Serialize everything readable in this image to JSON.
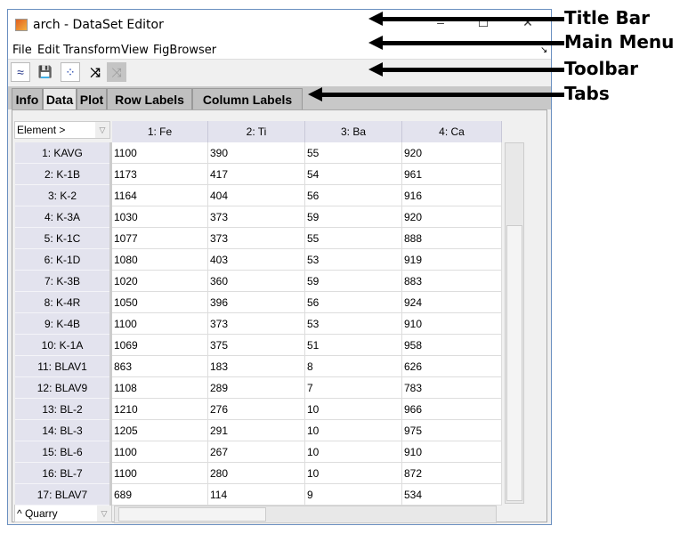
{
  "window": {
    "title": "arch - DataSet Editor",
    "minimize": "–",
    "maximize": "☐",
    "close": "✕"
  },
  "menu": [
    "File",
    "Edit",
    "Transform",
    "View",
    "FigBrowser"
  ],
  "toolbar": [
    {
      "icon": "plot-icon",
      "glyph": "≈"
    },
    {
      "icon": "save-icon",
      "glyph": "💾"
    },
    {
      "icon": "scatter-icon",
      "glyph": "⁘"
    },
    {
      "icon": "shuffle-icon",
      "glyph": "⤨"
    },
    {
      "icon": "shuffle-disabled-icon",
      "glyph": "⤨"
    }
  ],
  "tabs": [
    {
      "label": "Info"
    },
    {
      "label": "Data"
    },
    {
      "label": "Plot"
    },
    {
      "label": "Row Labels"
    },
    {
      "label": "Column Labels"
    }
  ],
  "table": {
    "column_selector": "Element >",
    "row_selector": "^ Quarry",
    "columns": [
      "1: Fe",
      "2: Ti",
      "3: Ba",
      "4: Ca"
    ],
    "rows": [
      {
        "label": "1: KAVG",
        "values": [
          "1100",
          "390",
          "55",
          "920"
        ]
      },
      {
        "label": "2: K-1B",
        "values": [
          "1173",
          "417",
          "54",
          "961"
        ]
      },
      {
        "label": "3: K-2",
        "values": [
          "1164",
          "404",
          "56",
          "916"
        ]
      },
      {
        "label": "4: K-3A",
        "values": [
          "1030",
          "373",
          "59",
          "920"
        ]
      },
      {
        "label": "5: K-1C",
        "values": [
          "1077",
          "373",
          "55",
          "888"
        ]
      },
      {
        "label": "6: K-1D",
        "values": [
          "1080",
          "403",
          "53",
          "919"
        ]
      },
      {
        "label": "7: K-3B",
        "values": [
          "1020",
          "360",
          "59",
          "883"
        ]
      },
      {
        "label": "8: K-4R",
        "values": [
          "1050",
          "396",
          "56",
          "924"
        ]
      },
      {
        "label": "9: K-4B",
        "values": [
          "1100",
          "373",
          "53",
          "910"
        ]
      },
      {
        "label": "10: K-1A",
        "values": [
          "1069",
          "375",
          "51",
          "958"
        ]
      },
      {
        "label": "11: BLAV1",
        "values": [
          "863",
          "183",
          "8",
          "626"
        ]
      },
      {
        "label": "12: BLAV9",
        "values": [
          "1108",
          "289",
          "7",
          "783"
        ]
      },
      {
        "label": "13: BL-2",
        "values": [
          "1210",
          "276",
          "10",
          "966"
        ]
      },
      {
        "label": "14: BL-3",
        "values": [
          "1205",
          "291",
          "10",
          "975"
        ]
      },
      {
        "label": "15: BL-6",
        "values": [
          "1100",
          "267",
          "10",
          "910"
        ]
      },
      {
        "label": "16: BL-7",
        "values": [
          "1100",
          "280",
          "10",
          "872"
        ]
      },
      {
        "label": "17: BLAV7",
        "values": [
          "689",
          "114",
          "9",
          "534"
        ]
      }
    ]
  },
  "annotations": [
    "Title Bar",
    "Main Menu",
    "Toolbar",
    "Tabs"
  ]
}
